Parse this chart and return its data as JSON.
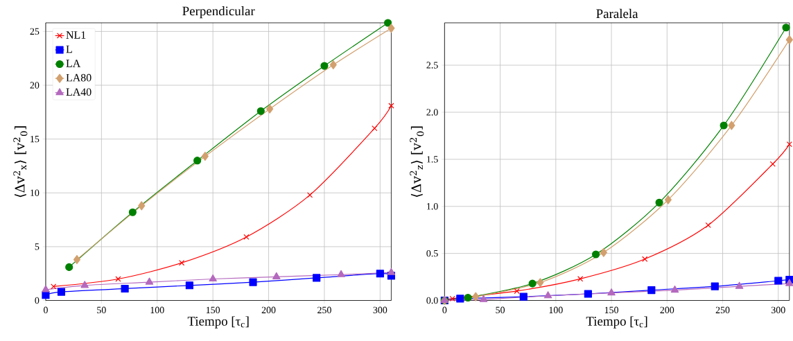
{
  "chart_data": [
    {
      "type": "line",
      "title": "Perpendicular",
      "xlabel": "Tiempo [τ$_{c}$]",
      "ylabel": "⟨Δv$^{2}$$_{x}$⟩ [v$^{2}$$_{0}$]",
      "xlim": [
        0,
        310
      ],
      "ylim": [
        0,
        25.8
      ],
      "xticks": [
        0,
        50,
        100,
        150,
        200,
        250,
        300
      ],
      "yticks": [
        0,
        5,
        10,
        15,
        20,
        25
      ],
      "grid": true,
      "legend": "top left",
      "series": [
        {
          "name": "NL1",
          "color": "#ff0000",
          "marker": "cross",
          "x": [
            7,
            65,
            122,
            180,
            237,
            295,
            310
          ],
          "values": [
            1.3,
            2.0,
            3.5,
            5.9,
            9.8,
            16.0,
            18.1
          ]
        },
        {
          "name": "L",
          "color": "#0000ff",
          "marker": "square",
          "x": [
            0,
            14,
            71,
            129,
            186,
            243,
            300,
            310
          ],
          "values": [
            0.5,
            0.8,
            1.1,
            1.4,
            1.7,
            2.1,
            2.5,
            2.3
          ]
        },
        {
          "name": "LA",
          "color": "#008000",
          "marker": "circle",
          "x": [
            21,
            78,
            136,
            193,
            250,
            307
          ],
          "values": [
            3.1,
            8.2,
            13.0,
            17.6,
            21.8,
            25.8
          ]
        },
        {
          "name": "LA80",
          "color": "#d2a06e",
          "marker": "diamond",
          "x": [
            28,
            86,
            143,
            201,
            258,
            310
          ],
          "values": [
            3.8,
            8.8,
            13.4,
            17.8,
            21.9,
            25.3
          ]
        },
        {
          "name": "LA40",
          "color": "#b469be",
          "marker": "triangle",
          "x": [
            0,
            35,
            93,
            150,
            207,
            265,
            310
          ],
          "values": [
            1.0,
            1.4,
            1.7,
            2.0,
            2.2,
            2.4,
            2.6
          ]
        }
      ]
    },
    {
      "type": "line",
      "title": "Paralela",
      "xlabel": "Tiempo [τ$_{c}$]",
      "ylabel": "⟨Δv$^{2}$$_{z}$⟩ [v$^{2}$$_{0}$]",
      "xlim": [
        0,
        310
      ],
      "ylim": [
        0,
        2.95
      ],
      "xticks": [
        0,
        50,
        100,
        150,
        200,
        250,
        300
      ],
      "yticks": [
        {
          "value": 0,
          "label": "0.0"
        },
        0.5,
        {
          "value": 1,
          "label": "1.0"
        },
        1.5,
        {
          "value": 2,
          "label": "2.0"
        },
        2.5
      ],
      "grid": true,
      "series": [
        {
          "color": "#ff0000",
          "marker": "cross",
          "x": [
            0,
            7,
            65,
            122,
            180,
            237,
            295,
            310
          ],
          "values": [
            0,
            0.02,
            0.1,
            0.23,
            0.44,
            0.8,
            1.45,
            1.66
          ]
        },
        {
          "color": "#0000ff",
          "marker": "square",
          "x": [
            0,
            14,
            71,
            129,
            186,
            243,
            300,
            310
          ],
          "values": [
            0,
            0.02,
            0.04,
            0.07,
            0.11,
            0.15,
            0.21,
            0.22
          ]
        },
        {
          "color": "#008000",
          "marker": "circle",
          "x": [
            0,
            21,
            79,
            136,
            193,
            251,
            307
          ],
          "values": [
            0,
            0.03,
            0.18,
            0.49,
            1.04,
            1.86,
            2.9
          ]
        },
        {
          "color": "#d2a06e",
          "marker": "diamond",
          "x": [
            0,
            28,
            86,
            143,
            201,
            258,
            310
          ],
          "values": [
            0,
            0.04,
            0.19,
            0.51,
            1.07,
            1.86,
            2.77
          ]
        },
        {
          "color": "#b469be",
          "marker": "triangle",
          "x": [
            0,
            35,
            93,
            150,
            207,
            265,
            310
          ],
          "values": [
            0,
            0.01,
            0.05,
            0.08,
            0.11,
            0.15,
            0.18
          ]
        }
      ]
    }
  ]
}
